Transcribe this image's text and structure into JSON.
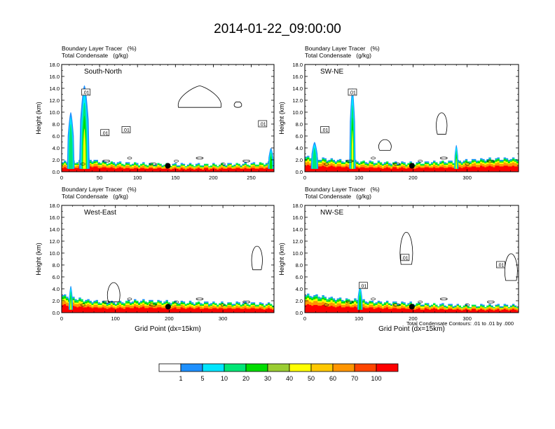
{
  "title": "2014-01-22_09:00:00",
  "chart_data": [
    {
      "type": "heatmap",
      "header": [
        "Boundary Layer Tracer   (%)",
        "Total Condensate   (g/kg)"
      ],
      "panel_label": "South-North",
      "ylabel": "Height (km)",
      "xlabel": "",
      "xlim": [
        0,
        280
      ],
      "xticks": [
        0,
        50,
        100,
        150,
        200,
        250
      ],
      "ylim": [
        0,
        18
      ],
      "yticks": [
        "0.0",
        "2.0",
        "4.0",
        "6.0",
        "8.0",
        "10.0",
        "12.0",
        "14.0",
        "16.0",
        "18.0"
      ],
      "contour_labels": [
        {
          "text": ".01",
          "x": 32,
          "y": 13.3
        },
        {
          "text": ".01",
          "x": 57,
          "y": 6.5
        },
        {
          "text": ".01",
          "x": 85,
          "y": 7.0
        },
        {
          "text": ".01",
          "x": 265,
          "y": 8.0
        }
      ],
      "marker": {
        "x": 140,
        "y": 1.0
      },
      "surface_band_max_km": [
        1.6,
        1.7,
        2.0,
        1.6,
        1.5,
        1.4,
        1.3,
        1.3,
        1.2,
        1.2,
        1.2,
        1.2,
        1.3,
        1.3,
        1.4,
        1.5
      ],
      "plumes": [
        {
          "x_center": 30,
          "width": 14,
          "top_km": 14.5,
          "peak": 40
        },
        {
          "x_center": 12,
          "width": 10,
          "top_km": 10.0,
          "peak": 10
        },
        {
          "x_center": 276,
          "width": 8,
          "top_km": 4.0,
          "peak": 20
        }
      ]
    },
    {
      "type": "heatmap",
      "header": [
        "Boundary Layer Tracer   (%)",
        "Total Condensate   (g/kg)"
      ],
      "panel_label": "SW-NE",
      "ylabel": "Height (km)",
      "xlabel": "",
      "xlim": [
        0,
        395
      ],
      "xticks": [
        0,
        100,
        200,
        300
      ],
      "ylim": [
        0,
        18
      ],
      "yticks": [
        "0.0",
        "2.0",
        "4.0",
        "6.0",
        "8.0",
        "10.0",
        "12.0",
        "14.0",
        "16.0",
        "18.0"
      ],
      "contour_labels": [
        {
          "text": ".01",
          "x": 88,
          "y": 13.3
        },
        {
          "text": ".01",
          "x": 37,
          "y": 7.0
        }
      ],
      "marker": {
        "x": 198,
        "y": 1.0
      },
      "surface_band_max_km": [
        2.5,
        2.2,
        2.0,
        1.8,
        1.7,
        1.6,
        1.5,
        1.5,
        1.5,
        1.6,
        1.7,
        1.8,
        2.0,
        2.1,
        2.2,
        2.2
      ],
      "plumes": [
        {
          "x_center": 88,
          "width": 12,
          "top_km": 14.0,
          "peak": 40
        },
        {
          "x_center": 18,
          "width": 14,
          "top_km": 5.0,
          "peak": 10
        },
        {
          "x_center": 280,
          "width": 8,
          "top_km": 4.5,
          "peak": 40
        }
      ]
    },
    {
      "type": "heatmap",
      "header": [
        "Boundary Layer Tracer   (%)",
        "Total Condensate   (g/kg)"
      ],
      "panel_label": "West-East",
      "ylabel": "Height (km)",
      "xlabel": "Grid Point (dx=15km)",
      "xlim": [
        0,
        395
      ],
      "xticks": [
        0,
        100,
        200,
        300
      ],
      "ylim": [
        0,
        18
      ],
      "yticks": [
        "0.0",
        "2.0",
        "4.0",
        "6.0",
        "8.0",
        "10.0",
        "12.0",
        "14.0",
        "16.0",
        "18.0"
      ],
      "contour_labels": [],
      "marker": {
        "x": 198,
        "y": 1.0
      },
      "surface_band_max_km": [
        3.0,
        2.4,
        2.0,
        1.8,
        1.7,
        2.0,
        2.0,
        1.9,
        1.8,
        1.7,
        1.7,
        1.6,
        1.6,
        1.6,
        1.5,
        1.5
      ],
      "plumes": [
        {
          "x_center": 17,
          "width": 8,
          "top_km": 4.5,
          "peak": 40
        }
      ]
    },
    {
      "type": "heatmap",
      "header": [
        "Boundary Layer Tracer   (%)",
        "Total Condensate   (g/kg)"
      ],
      "panel_label": "NW-SE",
      "ylabel": "Height (km)",
      "xlabel": "Grid Point (dx=15km)",
      "xlim": [
        0,
        395
      ],
      "xticks": [
        0,
        100,
        200,
        300
      ],
      "ylim": [
        0,
        18
      ],
      "yticks": [
        "0.0",
        "2.0",
        "4.0",
        "6.0",
        "8.0",
        "10.0",
        "12.0",
        "14.0",
        "16.0",
        "18.0"
      ],
      "contour_labels": [
        {
          "text": ".01",
          "x": 185,
          "y": 9.2
        },
        {
          "text": ".01",
          "x": 108,
          "y": 4.5
        },
        {
          "text": ".01",
          "x": 362,
          "y": 8.0
        }
      ],
      "marker": {
        "x": 198,
        "y": 1.0
      },
      "footnote": "Total Condensate Contours: .01 to .01 by .000",
      "surface_band_max_km": [
        3.0,
        2.8,
        2.4,
        2.2,
        2.0,
        1.8,
        1.7,
        1.6,
        1.5,
        1.4,
        1.3,
        1.2,
        1.2,
        1.2,
        1.2,
        1.2
      ],
      "plumes": [
        {
          "x_center": 102,
          "width": 10,
          "top_km": 4.5,
          "peak": 20
        }
      ]
    }
  ],
  "colorbar": {
    "levels": [
      "1",
      "5",
      "10",
      "20",
      "30",
      "40",
      "50",
      "60",
      "70",
      "100"
    ],
    "colors": [
      "#ffffff",
      "#1e90ff",
      "#00e5ff",
      "#00e676",
      "#00dd00",
      "#9acd32",
      "#ffff00",
      "#ffc800",
      "#ff9500",
      "#ff4500",
      "#ff0000"
    ]
  }
}
